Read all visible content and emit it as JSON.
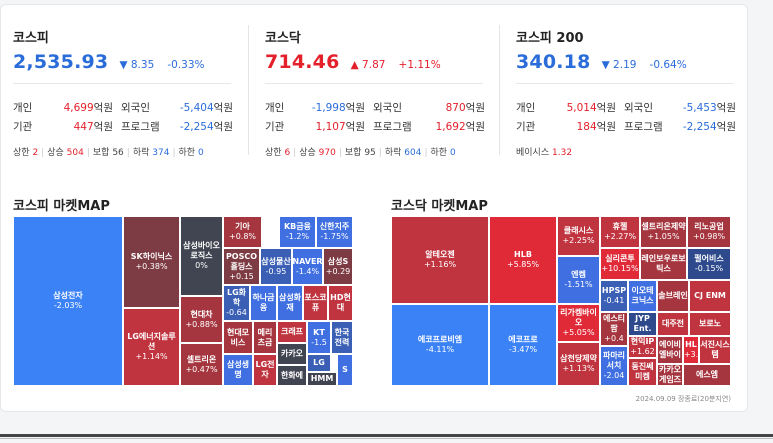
{
  "indices": [
    {
      "name": "코스피",
      "value": "2,535.93",
      "arrow": "▼",
      "change": "8.35",
      "pct": "-0.33%",
      "dir": "dn",
      "rows": [
        {
          "k1": "개인",
          "v1": "4,699",
          "d1": "up",
          "k2": "외국인",
          "v2": "-5,404",
          "d2": "dn"
        },
        {
          "k1": "기관",
          "v1": "447",
          "d1": "up",
          "k2": "프로그램",
          "v2": "-2,254",
          "d2": "dn"
        }
      ],
      "unit": "억원",
      "stat": {
        "upper_label": "상한",
        "upper": "2",
        "up_label": "상승",
        "up": "504",
        "flat_label": "보합",
        "flat": "56",
        "down_label": "하락",
        "down": "374",
        "lower_label": "하한",
        "lower": "0"
      }
    },
    {
      "name": "코스닥",
      "value": "714.46",
      "arrow": "▲",
      "change": "7.87",
      "pct": "+1.11%",
      "dir": "up",
      "rows": [
        {
          "k1": "개인",
          "v1": "-1,998",
          "d1": "dn",
          "k2": "외국인",
          "v2": "870",
          "d2": "up"
        },
        {
          "k1": "기관",
          "v1": "1,107",
          "d1": "up",
          "k2": "프로그램",
          "v2": "1,692",
          "d2": "up"
        }
      ],
      "unit": "억원",
      "stat": {
        "upper_label": "상한",
        "upper": "6",
        "up_label": "상승",
        "up": "970",
        "flat_label": "보합",
        "flat": "95",
        "down_label": "하락",
        "down": "604",
        "lower_label": "하한",
        "lower": "0"
      }
    },
    {
      "name": "코스피 200",
      "value": "340.18",
      "arrow": "▼",
      "change": "2.19",
      "pct": "-0.64%",
      "dir": "dn",
      "rows": [
        {
          "k1": "개인",
          "v1": "5,014",
          "d1": "up",
          "k2": "외국인",
          "v2": "-5,453",
          "d2": "dn"
        },
        {
          "k1": "기관",
          "v1": "184",
          "d1": "up",
          "k2": "프로그램",
          "v2": "-2,254",
          "d2": "dn"
        }
      ],
      "unit": "억원",
      "basis_label": "베이시스",
      "basis": "1.32"
    }
  ],
  "kospi_map": {
    "title": "코스피 마켓MAP",
    "cells": [
      {
        "n": "삼성전자",
        "p": "-2.03%",
        "c": "c-dn3"
      },
      {
        "n": "SK하이닉스",
        "p": "+0.38%",
        "c": "c-up0"
      },
      {
        "n": "LG에너지솔루션",
        "p": "+1.14%",
        "c": "c-up2"
      },
      {
        "n": "삼성바이오로직스",
        "p": "0%",
        "c": "c-flat"
      },
      {
        "n": "현대차",
        "p": "+0.88%",
        "c": "c-up1"
      },
      {
        "n": "셀트리온",
        "p": "+0.47%",
        "c": "c-up1"
      },
      {
        "n": "기아",
        "p": "+0.8%",
        "c": "c-up1"
      },
      {
        "n": "KB금융",
        "p": "-1.2%",
        "c": "c-dn2"
      },
      {
        "n": "신한지주",
        "p": "-1.75%",
        "c": "c-dn2"
      },
      {
        "n": "POSCO홀딩스",
        "p": "+0.15",
        "c": "c-up0"
      },
      {
        "n": "삼성물산",
        "p": "-0.95",
        "c": "c-dn1"
      },
      {
        "n": "NAVER",
        "p": "-1.4%",
        "c": "c-dn2"
      },
      {
        "n": "삼성S",
        "p": "+0.29",
        "c": "c-up0"
      },
      {
        "n": "LG화학",
        "p": "-0.64",
        "c": "c-dn1"
      },
      {
        "n": "하나금융",
        "p": "",
        "c": "c-dn2"
      },
      {
        "n": "삼성화재",
        "p": "",
        "c": "c-dn2"
      },
      {
        "n": "포스코퓨",
        "p": "",
        "c": "c-up2"
      },
      {
        "n": "HD현대",
        "p": "",
        "c": "c-up2"
      },
      {
        "n": "현대모비스",
        "p": "",
        "c": "c-up1"
      },
      {
        "n": "메리츠금",
        "p": "",
        "c": "c-up1"
      },
      {
        "n": "크래프",
        "p": "",
        "c": "c-up2"
      },
      {
        "n": "KT",
        "p": "-1.5",
        "c": "c-dn2"
      },
      {
        "n": "한국전력",
        "p": "",
        "c": "c-dn1"
      },
      {
        "n": "삼성생명",
        "p": "",
        "c": "c-dn2"
      },
      {
        "n": "LG전자",
        "p": "",
        "c": "c-up2"
      },
      {
        "n": "카카오",
        "p": "",
        "c": "c-flat"
      },
      {
        "n": "LG",
        "p": "",
        "c": "c-dn1"
      },
      {
        "n": "한화에",
        "p": "",
        "c": "c-flat"
      },
      {
        "n": "HMM",
        "p": "",
        "c": "c-flat"
      },
      {
        "n": "S",
        "p": "",
        "c": "c-dn2"
      }
    ]
  },
  "kosdaq_map": {
    "title": "코스닥 마켓MAP",
    "cells": [
      {
        "n": "알테오젠",
        "p": "+1.16%",
        "c": "c-up2"
      },
      {
        "n": "에코프로비엠",
        "p": "-4.11%",
        "c": "c-dn3"
      },
      {
        "n": "HLB",
        "p": "+5.85%",
        "c": "c-up3"
      },
      {
        "n": "에코프로",
        "p": "-3.47%",
        "c": "c-dn3"
      },
      {
        "n": "클래시스",
        "p": "+2.25%",
        "c": "c-up2"
      },
      {
        "n": "엔켐",
        "p": "-1.51%",
        "c": "c-dn2"
      },
      {
        "n": "리가켐바이오",
        "p": "+5.05%",
        "c": "c-up3"
      },
      {
        "n": "삼천당제약",
        "p": "+1.13%",
        "c": "c-up2"
      },
      {
        "n": "휴젤",
        "p": "+2.27%",
        "c": "c-up2"
      },
      {
        "n": "셀트리온제약",
        "p": "+1.05%",
        "c": "c-up1"
      },
      {
        "n": "리노공업",
        "p": "+0.98%",
        "c": "c-up1"
      },
      {
        "n": "실리콘투",
        "p": "+10.15%",
        "c": "c-up3"
      },
      {
        "n": "레인보우로보틱스",
        "p": "",
        "c": "c-up1"
      },
      {
        "n": "펄어비스",
        "p": "-0.15%",
        "c": "c-dn0"
      },
      {
        "n": "HPSP",
        "p": "-0.41",
        "c": "c-dn1"
      },
      {
        "n": "이오테크닉스",
        "p": "",
        "c": "c-dn2"
      },
      {
        "n": "솔브레인",
        "p": "",
        "c": "c-up1"
      },
      {
        "n": "CJ ENM",
        "p": "",
        "c": "c-up2"
      },
      {
        "n": "에스티팜",
        "p": "+0.4",
        "c": "c-up1"
      },
      {
        "n": "JYP Ent.",
        "p": "",
        "c": "c-dn0"
      },
      {
        "n": "대주전",
        "p": "",
        "c": "c-up2"
      },
      {
        "n": "보로노",
        "p": "",
        "c": "c-up2"
      },
      {
        "n": "현익IP",
        "p": "+1.62",
        "c": "c-up2"
      },
      {
        "n": "에이비엘바이",
        "p": "",
        "c": "c-up1"
      },
      {
        "n": "HL",
        "p": "+3.",
        "c": "c-up3"
      },
      {
        "n": "서진시스템",
        "p": "",
        "c": "c-up2"
      },
      {
        "n": "파마리서치",
        "p": "-2.04",
        "c": "c-dn2"
      },
      {
        "n": "동진쎄미켐",
        "p": "",
        "c": "c-up2"
      },
      {
        "n": "카카오게임즈",
        "p": "",
        "c": "c-up1"
      },
      {
        "n": "에스엠",
        "p": "",
        "c": "c-up1"
      }
    ]
  },
  "footnote": "2024.09.09 장종료(20분지연)"
}
